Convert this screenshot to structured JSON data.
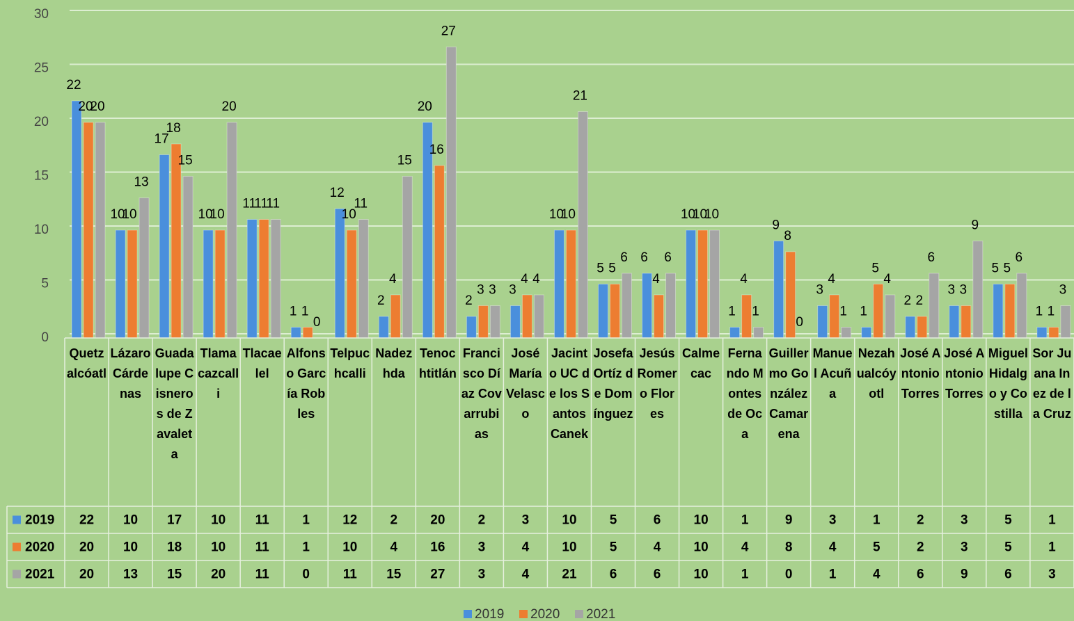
{
  "chart_data": {
    "type": "bar",
    "categories": [
      "Quetzalcóatl",
      "Lázaro Cárdenas",
      "Guadalupe Cisneros de Zavaleta",
      "Tlamacazcalli",
      "Tlacaelel",
      "Alfonso García Robles",
      "Telpuchcalli",
      "Nadezhda",
      "Tenochtitlán",
      "Francisco Díaz Covarrubias",
      "José María Velasco",
      "Jacinto UC de los Santos Canek",
      "Josefa Ortíz de Domínguez",
      "Jesús Romero Flores",
      "Calmecac",
      "Fernando Montes de Oca",
      "Guillermo González Camarena",
      "Manuel Acuña",
      "Nezahualcóyotl",
      "José Antonio Torres",
      "José Antonio Torres",
      "Miguel Hidalgo y Costilla",
      "Sor Juana Inez de la Cruz"
    ],
    "series": [
      {
        "name": "2019",
        "color": "#4a8fdc",
        "values": [
          22,
          10,
          17,
          10,
          11,
          1,
          12,
          2,
          20,
          2,
          3,
          10,
          5,
          6,
          10,
          1,
          9,
          3,
          1,
          2,
          3,
          5,
          1
        ]
      },
      {
        "name": "2020",
        "color": "#ed7d31",
        "values": [
          20,
          10,
          18,
          10,
          11,
          1,
          10,
          4,
          16,
          3,
          4,
          10,
          5,
          4,
          10,
          4,
          8,
          4,
          5,
          2,
          3,
          5,
          1
        ]
      },
      {
        "name": "2021",
        "color": "#a5a5a5",
        "values": [
          20,
          13,
          15,
          20,
          11,
          0,
          11,
          15,
          27,
          3,
          4,
          21,
          6,
          6,
          10,
          1,
          0,
          1,
          4,
          6,
          9,
          6,
          3
        ]
      }
    ],
    "ylim": [
      0,
      30
    ],
    "yticks": [
      0,
      5,
      10,
      15,
      20,
      25,
      30
    ],
    "grid": true,
    "legend": "bottom",
    "data_table": true
  }
}
